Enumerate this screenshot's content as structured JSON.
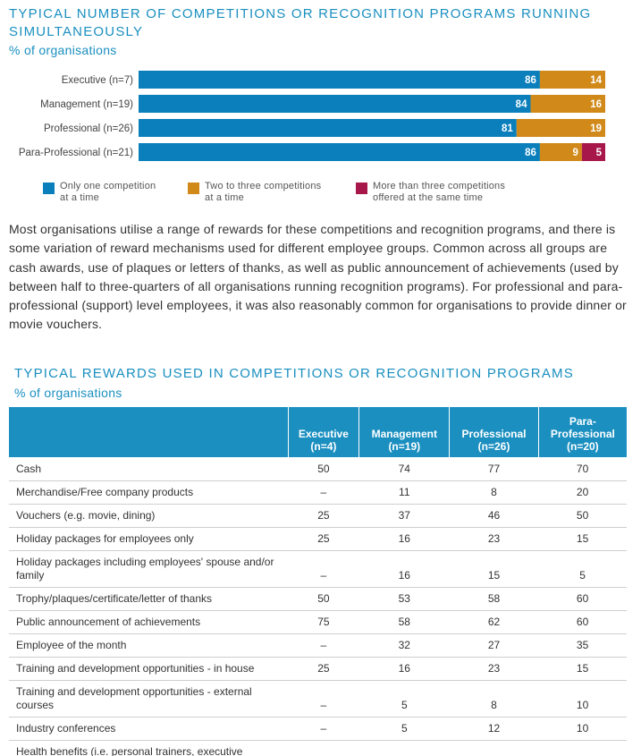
{
  "section1": {
    "title_line1": "TYPICAL NUMBER OF COMPETITIONS OR RECOGNITION PROGRAMS RUNNING",
    "title_line2": "SIMULTANEOUSLY",
    "subtitle": "% of organisations"
  },
  "chart_data": {
    "type": "bar",
    "orientation": "horizontal",
    "stacked": true,
    "categories": [
      "Executive (n=7)",
      "Management (n=19)",
      "Professional (n=26)",
      "Para-Professional (n=21)"
    ],
    "series": [
      {
        "name": "Only one competition at a time",
        "values": [
          86,
          84,
          81,
          86
        ],
        "color": "#0a7fbc"
      },
      {
        "name": "Two to three competitions at a time",
        "values": [
          14,
          16,
          19,
          9
        ],
        "color": "#d18a1a"
      },
      {
        "name": "More than three competitions offered at the same time",
        "values": [
          0,
          0,
          0,
          5
        ],
        "color": "#a8174a"
      }
    ],
    "xlim": [
      0,
      100
    ],
    "grid": false,
    "legend_position": "bottom"
  },
  "legend": [
    {
      "line1": "Only one competition",
      "line2": "at a time",
      "color": "#0a7fbc"
    },
    {
      "line1": "Two to three competitions",
      "line2": "at a time",
      "color": "#d18a1a"
    },
    {
      "line1": "More than three competitions",
      "line2": "offered at the same time",
      "color": "#a8174a"
    }
  ],
  "paragraph": "Most organisations utilise a range of rewards for these competitions and recognition programs, and there is some variation of reward mechanisms used for different employee groups. Common across all groups are cash awards, use of plaques or letters of thanks, as well as public announcement of achievements (used by between half to three-quarters of all organisations running recognition programs). For professional and para-professional (support) level employees, it was also reasonably common for organisations to provide dinner or movie vouchers.",
  "section2": {
    "title": "TYPICAL REWARDS USED IN COMPETITIONS OR RECOGNITION PROGRAMS",
    "subtitle": "% of organisations"
  },
  "table": {
    "headers": [
      {
        "line1": "Executive",
        "line2": "(n=4)"
      },
      {
        "line1": "Management",
        "line2": "(n=19)"
      },
      {
        "line1": "Professional",
        "line2": "(n=26)"
      },
      {
        "line0": "Para-",
        "line1": "Professional",
        "line2": "(n=20)"
      }
    ],
    "rows": [
      {
        "label": "Cash",
        "values": [
          "50",
          "74",
          "77",
          "70"
        ]
      },
      {
        "label": "Merchandise/Free company products",
        "values": [
          "–",
          "11",
          "8",
          "20"
        ]
      },
      {
        "label": "Vouchers (e.g. movie, dining)",
        "values": [
          "25",
          "37",
          "46",
          "50"
        ]
      },
      {
        "label": "Holiday packages for employees only",
        "values": [
          "25",
          "16",
          "23",
          "15"
        ]
      },
      {
        "label": "Holiday packages including employees' spouse and/or family",
        "values": [
          "–",
          "16",
          "15",
          "5"
        ]
      },
      {
        "label": "Trophy/plaques/certificate/letter of thanks",
        "values": [
          "50",
          "53",
          "58",
          "60"
        ]
      },
      {
        "label": "Public announcement of achievements",
        "values": [
          "75",
          "58",
          "62",
          "60"
        ]
      },
      {
        "label": "Employee of the month",
        "values": [
          "–",
          "32",
          "27",
          "35"
        ]
      },
      {
        "label": "Training and development opportunities - in house",
        "values": [
          "25",
          "16",
          "23",
          "15"
        ]
      },
      {
        "label": "Training and development opportunities - external courses",
        "values": [
          "–",
          "5",
          "8",
          "10"
        ]
      },
      {
        "label": "Industry conferences",
        "values": [
          "–",
          "5",
          "12",
          "10"
        ]
      },
      {
        "label": "Health benefits (i.e. personal trainers, executive",
        "values": [
          "",
          "",
          "",
          ""
        ]
      }
    ]
  }
}
